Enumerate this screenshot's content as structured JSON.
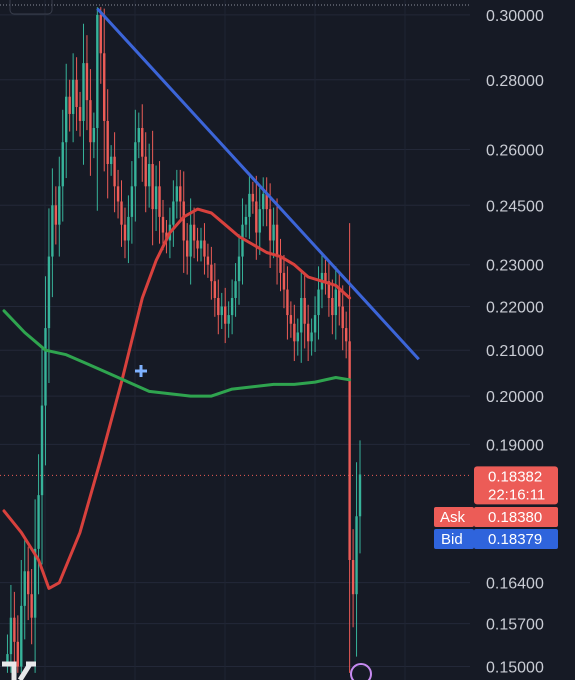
{
  "chart_data": {
    "type": "candlestick",
    "title": "",
    "xlabel": "",
    "ylabel": "",
    "y_scale": "log",
    "ylim": [
      0.1485,
      0.3035
    ],
    "grid": true,
    "y_ticks": [
      {
        "value": 0.3,
        "label": "0.30000"
      },
      {
        "value": 0.28,
        "label": "0.28000"
      },
      {
        "value": 0.26,
        "label": "0.26000"
      },
      {
        "value": 0.245,
        "label": "0.24500"
      },
      {
        "value": 0.23,
        "label": "0.23000"
      },
      {
        "value": 0.22,
        "label": "0.22000"
      },
      {
        "value": 0.21,
        "label": "0.21000"
      },
      {
        "value": 0.2,
        "label": "0.20000"
      },
      {
        "value": 0.19,
        "label": "0.19000"
      },
      {
        "value": 0.164,
        "label": "0.16400"
      },
      {
        "value": 0.157,
        "label": "0.15700"
      },
      {
        "value": 0.15,
        "label": "0.15000"
      }
    ],
    "price_series": [
      0.15,
      0.152,
      0.158,
      0.154,
      0.15,
      0.16,
      0.166,
      0.162,
      0.158,
      0.17,
      0.18,
      0.198,
      0.215,
      0.232,
      0.245,
      0.24,
      0.25,
      0.262,
      0.275,
      0.27,
      0.28,
      0.272,
      0.268,
      0.285,
      0.274,
      0.262,
      0.266,
      0.3,
      0.288,
      0.268,
      0.256,
      0.258,
      0.25,
      0.246,
      0.24,
      0.236,
      0.242,
      0.25,
      0.262,
      0.266,
      0.258,
      0.25,
      0.256,
      0.244,
      0.25,
      0.242,
      0.238,
      0.236,
      0.24,
      0.246,
      0.25,
      0.246,
      0.236,
      0.232,
      0.24,
      0.236,
      0.234,
      0.236,
      0.232,
      0.23,
      0.226,
      0.222,
      0.218,
      0.22,
      0.216,
      0.218,
      0.222,
      0.226,
      0.232,
      0.24,
      0.242,
      0.248,
      0.246,
      0.238,
      0.244,
      0.248,
      0.244,
      0.236,
      0.24,
      0.232,
      0.228,
      0.224,
      0.218,
      0.216,
      0.212,
      0.214,
      0.222,
      0.216,
      0.212,
      0.214,
      0.218,
      0.224,
      0.228,
      0.226,
      0.222,
      0.218,
      0.224,
      0.22,
      0.215,
      0.212,
      0.168,
      0.162,
      0.176,
      0.184
    ],
    "series": [
      {
        "name": "",
        "color": "#d8413d",
        "points": [
          [
            0,
            0.177
          ],
          [
            5,
            0.173
          ],
          [
            10,
            0.168
          ],
          [
            13,
            0.163
          ],
          [
            16,
            0.164
          ],
          [
            22,
            0.173
          ],
          [
            28,
            0.187
          ],
          [
            34,
            0.203
          ],
          [
            40,
            0.222
          ],
          [
            44,
            0.231
          ],
          [
            48,
            0.238
          ],
          [
            52,
            0.242
          ],
          [
            56,
            0.244
          ],
          [
            60,
            0.243
          ],
          [
            64,
            0.24
          ],
          [
            68,
            0.237
          ],
          [
            72,
            0.235
          ],
          [
            76,
            0.233
          ],
          [
            80,
            0.232
          ],
          [
            84,
            0.23
          ],
          [
            88,
            0.227
          ],
          [
            92,
            0.226
          ],
          [
            96,
            0.225
          ],
          [
            100,
            0.222
          ]
        ]
      },
      {
        "name": "",
        "color": "#2fa44f",
        "points": [
          [
            0,
            0.219
          ],
          [
            6,
            0.214
          ],
          [
            12,
            0.21
          ],
          [
            18,
            0.209
          ],
          [
            24,
            0.207
          ],
          [
            30,
            0.205
          ],
          [
            36,
            0.203
          ],
          [
            42,
            0.201
          ],
          [
            48,
            0.2005
          ],
          [
            54,
            0.2
          ],
          [
            60,
            0.2
          ],
          [
            66,
            0.2015
          ],
          [
            72,
            0.202
          ],
          [
            78,
            0.2025
          ],
          [
            84,
            0.2025
          ],
          [
            90,
            0.203
          ],
          [
            96,
            0.204
          ],
          [
            100,
            0.2035
          ]
        ]
      }
    ],
    "trendline": {
      "color": "#3c65d8",
      "points": [
        [
          27,
          0.302
        ],
        [
          120,
          0.208
        ]
      ]
    },
    "current_price": {
      "value": 0.18382,
      "label": "0.18382",
      "countdown": "22:16:11",
      "color": "#ec5c57"
    },
    "ask": {
      "label": "Ask",
      "value": "0.18380",
      "color": "#ec5c57"
    },
    "bid": {
      "label": "Bid",
      "value": "0.18379",
      "color": "#2f64dc"
    }
  }
}
